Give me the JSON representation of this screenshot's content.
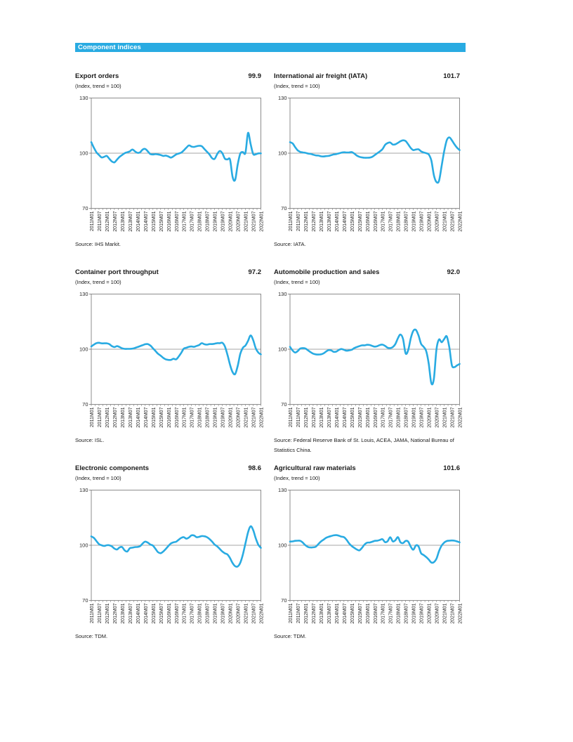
{
  "page": {
    "section_title": "Component indices"
  },
  "colors": {
    "accent": "#29abe2",
    "line": "#29abe2",
    "gridline": "#a6a6a6",
    "plot_border": "#808080",
    "tick_label": "#262626"
  },
  "axis": {
    "ylim": [
      70,
      130
    ],
    "y_ticks": [
      130,
      100,
      70
    ],
    "reference_line": 100,
    "minor_tick_every_months": 3,
    "months_span": 132,
    "x_tick_labels": [
      "2011M01",
      "2011M07",
      "2012M01",
      "2012M07",
      "2013M01",
      "2013M07",
      "2014M01",
      "2014M07",
      "2015M01",
      "2015M07",
      "2016M01",
      "2016M07",
      "2017M01",
      "2017M07",
      "2018M01",
      "2018M07",
      "2019M01",
      "2019M07",
      "2020M01",
      "2020M07",
      "2021M01",
      "2021M07",
      "2022M01"
    ],
    "grid": "horizontal reference line at 100 only",
    "legend": "none"
  },
  "chart_data": [
    {
      "type": "line",
      "title": "Export orders",
      "value_label": "99.9",
      "subtitle": "(Index, trend = 100)",
      "source": "Source:  IHS Markit.",
      "x_start": "2011M01",
      "x_end": "2022M01",
      "sample_step_months": 2,
      "values": [
        106,
        103,
        100.5,
        99,
        97.7,
        98,
        98.5,
        97,
        95.5,
        95,
        96.5,
        98,
        99,
        100,
        100.5,
        101,
        102,
        101,
        100.2,
        100.5,
        102,
        102.3,
        101,
        99.5,
        99.3,
        99.5,
        99.3,
        99,
        98.5,
        98.7,
        98.2,
        97.6,
        98.3,
        99.3,
        99.8,
        100.3,
        101.5,
        103,
        104.2,
        103.6,
        103.4,
        103.8,
        104,
        103.8,
        102.3,
        100.8,
        99.3,
        97.3,
        96.9,
        99.5,
        101.2,
        100,
        97,
        96.6,
        96.5,
        87,
        85.5,
        94,
        99.8,
        100.6,
        100.2,
        111,
        105,
        99.6,
        99.4,
        99.9,
        99.9
      ]
    },
    {
      "type": "line",
      "title": "International air freight (IATA)",
      "value_label": "101.7",
      "subtitle": "(Index, trend = 100)",
      "source": "Source: IATA.",
      "x_start": "2011M01",
      "x_end": "2022M01",
      "sample_step_months": 2,
      "values": [
        106,
        105.3,
        103.3,
        101.5,
        100.7,
        100.4,
        100.2,
        99.8,
        99.6,
        99.2,
        98.8,
        98.7,
        98.3,
        98.2,
        98.4,
        98.5,
        98.9,
        99.3,
        99.5,
        99.9,
        100.3,
        100.5,
        100.4,
        100.4,
        100.6,
        99.8,
        98.7,
        98,
        97.7,
        97.5,
        97.5,
        97.6,
        98,
        99,
        100,
        101,
        102.2,
        104.5,
        105.5,
        105.8,
        104.7,
        104.8,
        105.6,
        106.5,
        107,
        106.6,
        104.8,
        102.8,
        101.7,
        102,
        102.1,
        101,
        100.4,
        100,
        99.3,
        96,
        88,
        84.3,
        85,
        93,
        101,
        107,
        108.6,
        107,
        104.8,
        103,
        101.7
      ]
    },
    {
      "type": "line",
      "title": "Container port throughput",
      "value_label": "97.2",
      "subtitle": "(Index, trend = 100)",
      "source": "Source: ISL.",
      "x_start": "2011M01",
      "x_end": "2022M01",
      "sample_step_months": 2,
      "values": [
        101.5,
        102.5,
        103.3,
        103.5,
        103.2,
        103.2,
        103.2,
        102.8,
        101.7,
        101.2,
        101.7,
        101.2,
        100.5,
        100.2,
        100.2,
        100.2,
        100.3,
        100.7,
        101.2,
        101.7,
        102.2,
        102.7,
        102.8,
        102,
        100.5,
        99,
        97.5,
        96.5,
        95.3,
        94.5,
        94.2,
        94.2,
        94.8,
        94.5,
        96,
        98,
        100.3,
        100.8,
        101.3,
        101.5,
        101.3,
        101.8,
        102.3,
        103.3,
        102.7,
        102.5,
        102.8,
        102.8,
        103,
        103.3,
        103.3,
        103.5,
        101.5,
        97,
        91.5,
        87.5,
        86.5,
        91,
        97.5,
        100.8,
        102,
        104.5,
        107.5,
        105,
        100.5,
        98.2,
        97.2
      ]
    },
    {
      "type": "line",
      "title": "Automobile production and sales",
      "value_label": "92.0",
      "subtitle": "(Index, trend = 100)",
      "source": "Source: Federal Reserve Bank of St. Louis, ACEA, JAMA, National Bureau of Statistics China.",
      "x_start": "2011M01",
      "x_end": "2022M01",
      "sample_step_months": 2,
      "values": [
        101.3,
        99.3,
        98.2,
        99,
        100.4,
        100.6,
        100.4,
        99.4,
        98.4,
        97.6,
        97.2,
        97.1,
        97.2,
        97.7,
        98.7,
        99.5,
        99.4,
        98.6,
        98.7,
        99.6,
        100.1,
        99.7,
        99.2,
        99.4,
        99.7,
        100.6,
        101.2,
        101.7,
        102.1,
        102.1,
        102.4,
        102.3,
        101.8,
        101.4,
        101.7,
        102.3,
        102.5,
        101.8,
        100.8,
        100.6,
        101.2,
        102.8,
        106,
        108,
        105.5,
        97.7,
        99.5,
        106,
        110,
        110.5,
        107.5,
        103,
        101.3,
        99,
        92,
        81.5,
        84,
        100,
        105.3,
        103.8,
        105.5,
        107,
        101,
        91.3,
        90.3,
        91.2,
        92
      ]
    },
    {
      "type": "line",
      "title": "Electronic components",
      "value_label": "98.6",
      "subtitle": "(Index, trend = 100)",
      "source": "Source:  TDM.",
      "x_start": "2011M01",
      "x_end": "2022M01",
      "sample_step_months": 2,
      "values": [
        104.8,
        104,
        102.3,
        100.6,
        100,
        99.6,
        100,
        100,
        99.4,
        98.2,
        97.7,
        98.8,
        99,
        97.2,
        96.6,
        98.4,
        98.7,
        99,
        99.1,
        99.5,
        101,
        102,
        101.4,
        100.4,
        99.8,
        98,
        96.2,
        95.7,
        96.6,
        98,
        99.6,
        101,
        101.6,
        101.9,
        103,
        104,
        104.4,
        103.6,
        104.2,
        105.4,
        105.3,
        104.4,
        104.6,
        105,
        104.9,
        104.4,
        103.4,
        102,
        100.4,
        99.4,
        98,
        96.6,
        95.6,
        95,
        93,
        90.3,
        88.6,
        88.5,
        90.5,
        95,
        101,
        107,
        110.3,
        108.3,
        103.8,
        100.3,
        98.6
      ]
    },
    {
      "type": "line",
      "title": "Agricultural raw materials",
      "value_label": "101.6",
      "subtitle": "(Index, trend = 100)",
      "source": "Source: TDM.",
      "x_start": "2011M01",
      "x_end": "2022M01",
      "sample_step_months": 2,
      "values": [
        102,
        102.1,
        102.4,
        102.5,
        102.4,
        101.4,
        100,
        99.1,
        98.8,
        98.9,
        99.2,
        100.6,
        102,
        103,
        104,
        104.6,
        105,
        105.4,
        105.5,
        105.2,
        104.7,
        104.4,
        103,
        101,
        99.6,
        98.6,
        97.7,
        97.2,
        98.6,
        100.4,
        101.4,
        101.5,
        101.9,
        102.4,
        102.5,
        102.9,
        103.3,
        101.7,
        102.2,
        104.4,
        102.1,
        102.7,
        104.4,
        101.6,
        101.2,
        102.4,
        102,
        99.2,
        97.6,
        99.9,
        99.4,
        95.7,
        94.7,
        93.6,
        92.2,
        90.6,
        90.8,
        92.7,
        96.8,
        99.8,
        101.4,
        102.3,
        102.5,
        102.6,
        102.5,
        102.1,
        101.6
      ]
    }
  ]
}
